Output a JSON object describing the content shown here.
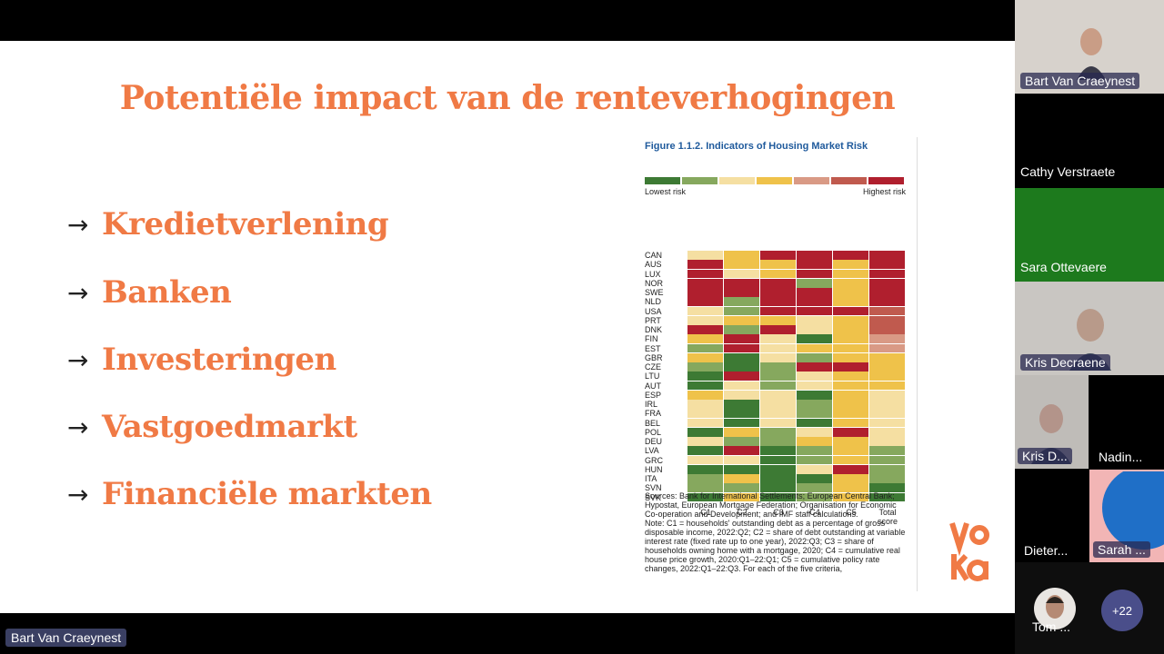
{
  "slide": {
    "title": "Potentiële impact van de renteverhogingen",
    "bullets": [
      {
        "arrow": "→",
        "text": "Kredietverlening"
      },
      {
        "arrow": "→",
        "text": "Banken"
      },
      {
        "arrow": "→",
        "text": "Investeringen"
      },
      {
        "arrow": "→",
        "text": "Vastgoedmarkt"
      },
      {
        "arrow": "→",
        "text": "Financiële markten"
      }
    ],
    "logo_text": "voka"
  },
  "figure": {
    "title": "Figure 1.1.2.  Indicators of Housing Market Risk",
    "legend_low": "Lowest risk",
    "legend_high": "Highest risk",
    "legend_colors": [
      "#3d7a34",
      "#86a85e",
      "#f5dfa2",
      "#efc24a",
      "#d99a85",
      "#c05a4e",
      "#b01f2e"
    ],
    "notes": [
      "Sources: Bank for International Settlements; European Central Bank; Hypostat, European Mortgage Federation; Organisation for Economic Co-operation and Development; and IMF staff calculations.",
      "Note: C1 = households' outstanding debt as a percentage of gross disposable income, 2022:Q2; C2 = share of debt outstanding at variable interest rate (fixed rate up to one year), 2022:Q3; C3 = share of households owning home with a mortgage, 2020; C4 = cumulative real house price growth, 2020:Q1–22:Q1; C5 = cumulative policy rate changes, 2022:Q1–22:Q3. For each of the five criteria,"
    ]
  },
  "chart_data": {
    "type": "heatmap",
    "title": "Figure 1.1.2.  Indicators of Housing Market Risk",
    "columns": [
      "C1",
      "C2",
      "C3",
      "C4",
      "C5",
      "Total score"
    ],
    "rows": [
      "CAN",
      "AUS",
      "LUX",
      "NOR",
      "SWE",
      "NLD",
      "USA",
      "PRT",
      "DNK",
      "FIN",
      "EST",
      "GBR",
      "CZE",
      "LTU",
      "AUT",
      "ESP",
      "IRL",
      "FRA",
      "BEL",
      "POL",
      "DEU",
      "LVA",
      "GRC",
      "HUN",
      "ITA",
      "SVN",
      "SVK"
    ],
    "scale": {
      "min": 1,
      "max": 7,
      "min_label": "Lowest risk",
      "max_label": "Highest risk"
    },
    "palette": [
      "#3d7a34",
      "#86a85e",
      "#f5dfa2",
      "#efc24a",
      "#d99a85",
      "#c05a4e",
      "#b01f2e"
    ],
    "values": [
      [
        3,
        4,
        7,
        7,
        7,
        7
      ],
      [
        7,
        4,
        4,
        7,
        4,
        7
      ],
      [
        7,
        3,
        4,
        7,
        4,
        7
      ],
      [
        7,
        7,
        7,
        2,
        4,
        7
      ],
      [
        7,
        7,
        7,
        7,
        4,
        7
      ],
      [
        7,
        2,
        7,
        7,
        4,
        7
      ],
      [
        3,
        2,
        7,
        7,
        7,
        6
      ],
      [
        3,
        4,
        4,
        3,
        4,
        6
      ],
      [
        7,
        2,
        7,
        3,
        4,
        6
      ],
      [
        4,
        7,
        3,
        1,
        4,
        5
      ],
      [
        2,
        7,
        3,
        4,
        4,
        5
      ],
      [
        4,
        1,
        3,
        2,
        4,
        4
      ],
      [
        2,
        1,
        2,
        7,
        7,
        4
      ],
      [
        1,
        7,
        2,
        3,
        4,
        4
      ],
      [
        1,
        3,
        2,
        3,
        4,
        4
      ],
      [
        4,
        3,
        3,
        1,
        4,
        3
      ],
      [
        3,
        1,
        3,
        2,
        4,
        3
      ],
      [
        3,
        1,
        3,
        2,
        4,
        3
      ],
      [
        3,
        1,
        3,
        1,
        4,
        3
      ],
      [
        1,
        4,
        2,
        3,
        7,
        3
      ],
      [
        3,
        2,
        2,
        4,
        4,
        3
      ],
      [
        1,
        7,
        1,
        2,
        4,
        2
      ],
      [
        3,
        3,
        1,
        2,
        4,
        2
      ],
      [
        1,
        1,
        1,
        3,
        7,
        2
      ],
      [
        2,
        4,
        1,
        1,
        4,
        2
      ],
      [
        2,
        2,
        1,
        2,
        4,
        1
      ],
      [
        1,
        4,
        1,
        2,
        4,
        1
      ]
    ]
  },
  "participants": [
    {
      "name": "Bart Van Craeynest",
      "bg": "#d7d2cc"
    },
    {
      "name": "Cathy Verstraete",
      "bg": "#000000"
    },
    {
      "name": "Sara Ottevaere",
      "bg": "#1d7a1d"
    },
    {
      "name": "Kris Decraene",
      "bg": "#c9c6c2"
    },
    {
      "name": "Kris D...",
      "bg": "#bfbcb8"
    },
    {
      "name": "Nadin...",
      "bg": "#000000"
    },
    {
      "name": "Dieter...",
      "bg": "#000000"
    },
    {
      "name": "Sarah ...",
      "bg": "#f2b5b5"
    },
    {
      "name": "Tom ...",
      "bg": "#0e0e0e"
    }
  ],
  "more_participants": "+22",
  "active_speaker": "Bart Van Craeynest"
}
